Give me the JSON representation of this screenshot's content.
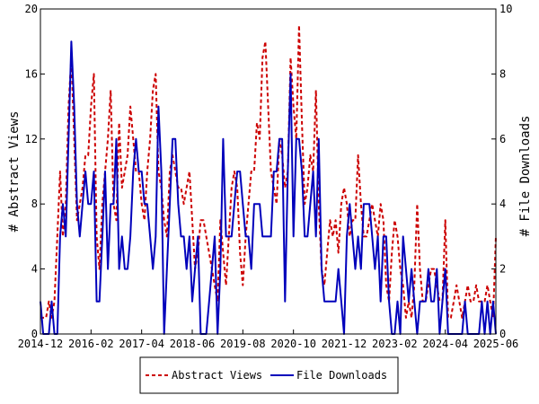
{
  "chart_data": {
    "type": "line",
    "title": "",
    "y_left_label": "# Abstract Views",
    "y_right_label": "# File Downloads",
    "y_left_lim": [
      0,
      20
    ],
    "y_right_lim": [
      0,
      10
    ],
    "y_left_ticks": [
      0,
      4,
      8,
      12,
      16,
      20
    ],
    "y_right_ticks": [
      0,
      2,
      4,
      6,
      8,
      10
    ],
    "x_start": "2014-12",
    "x_end": "2025-06",
    "x_ticks": [
      "2014-12",
      "2016-02",
      "2017-04",
      "2018-06",
      "2019-08",
      "2020-10",
      "2021-12",
      "2023-02",
      "2024-04",
      "2025-06"
    ],
    "grid": false,
    "legend_position": "bottom",
    "series": [
      {
        "name": "Abstract Views",
        "axis": "left",
        "color": "#cc0000",
        "style": "dashed",
        "values": [
          1,
          1,
          1,
          2,
          1,
          2,
          6,
          10,
          6,
          8,
          14,
          17,
          12,
          7,
          8,
          9,
          11,
          11,
          14,
          16,
          6,
          4,
          8,
          10,
          12,
          15,
          8,
          7,
          13,
          9,
          10,
          11,
          14,
          12,
          10,
          10,
          8,
          7,
          10,
          12,
          15,
          16,
          10,
          9,
          7,
          6,
          10,
          11,
          10,
          9,
          9,
          8,
          9,
          10,
          7,
          4,
          5,
          7,
          7,
          6,
          5,
          4,
          3,
          2,
          7,
          5,
          3,
          6,
          9,
          10,
          9,
          5,
          3,
          6,
          8,
          10,
          10,
          13,
          12,
          17,
          18,
          14,
          10,
          9,
          8,
          12,
          11,
          9,
          10,
          17,
          14,
          12,
          19,
          13,
          8,
          9,
          11,
          10,
          15,
          8,
          4,
          3,
          5,
          7,
          6,
          7,
          5,
          8,
          9,
          8,
          6,
          7,
          7,
          11,
          8,
          6,
          6,
          7,
          8,
          7,
          6,
          8,
          7,
          3,
          2,
          5,
          7,
          6,
          4,
          3,
          1,
          2,
          1,
          3,
          8,
          4,
          2,
          2,
          3,
          4,
          4,
          3,
          2,
          2,
          7,
          1,
          1,
          2,
          3,
          2,
          1,
          2,
          3,
          2,
          2,
          3,
          2,
          2,
          2,
          3,
          2,
          1,
          6
        ]
      },
      {
        "name": "File Downloads",
        "axis": "right",
        "color": "#0000bb",
        "style": "solid",
        "values": [
          1,
          0,
          0,
          0,
          1,
          0,
          0,
          3,
          4,
          3,
          6,
          9,
          7,
          4,
          3,
          4,
          5,
          4,
          4,
          5,
          1,
          1,
          3,
          5,
          2,
          4,
          4,
          6,
          2,
          3,
          2,
          2,
          3,
          5,
          6,
          5,
          5,
          4,
          4,
          3,
          2,
          3,
          7,
          5,
          0,
          2,
          4,
          6,
          6,
          4,
          3,
          3,
          2,
          3,
          1,
          2,
          3,
          0,
          0,
          0,
          1,
          2,
          3,
          0,
          2,
          6,
          3,
          3,
          3,
          4,
          5,
          5,
          4,
          3,
          3,
          2,
          4,
          4,
          4,
          3,
          3,
          3,
          3,
          5,
          5,
          6,
          6,
          1,
          5,
          8,
          3,
          6,
          6,
          5,
          3,
          3,
          4,
          5,
          3,
          6,
          2,
          1,
          1,
          1,
          1,
          1,
          2,
          1,
          0,
          3,
          4,
          3,
          2,
          3,
          2,
          4,
          4,
          4,
          3,
          2,
          3,
          1,
          3,
          3,
          1,
          0,
          0,
          1,
          0,
          3,
          2,
          1,
          2,
          1,
          0,
          1,
          1,
          1,
          2,
          1,
          1,
          2,
          0,
          1,
          2,
          0,
          0,
          0,
          0,
          0,
          0,
          1,
          0,
          0,
          0,
          0,
          0,
          1,
          0,
          1,
          0,
          1,
          0
        ]
      }
    ]
  }
}
